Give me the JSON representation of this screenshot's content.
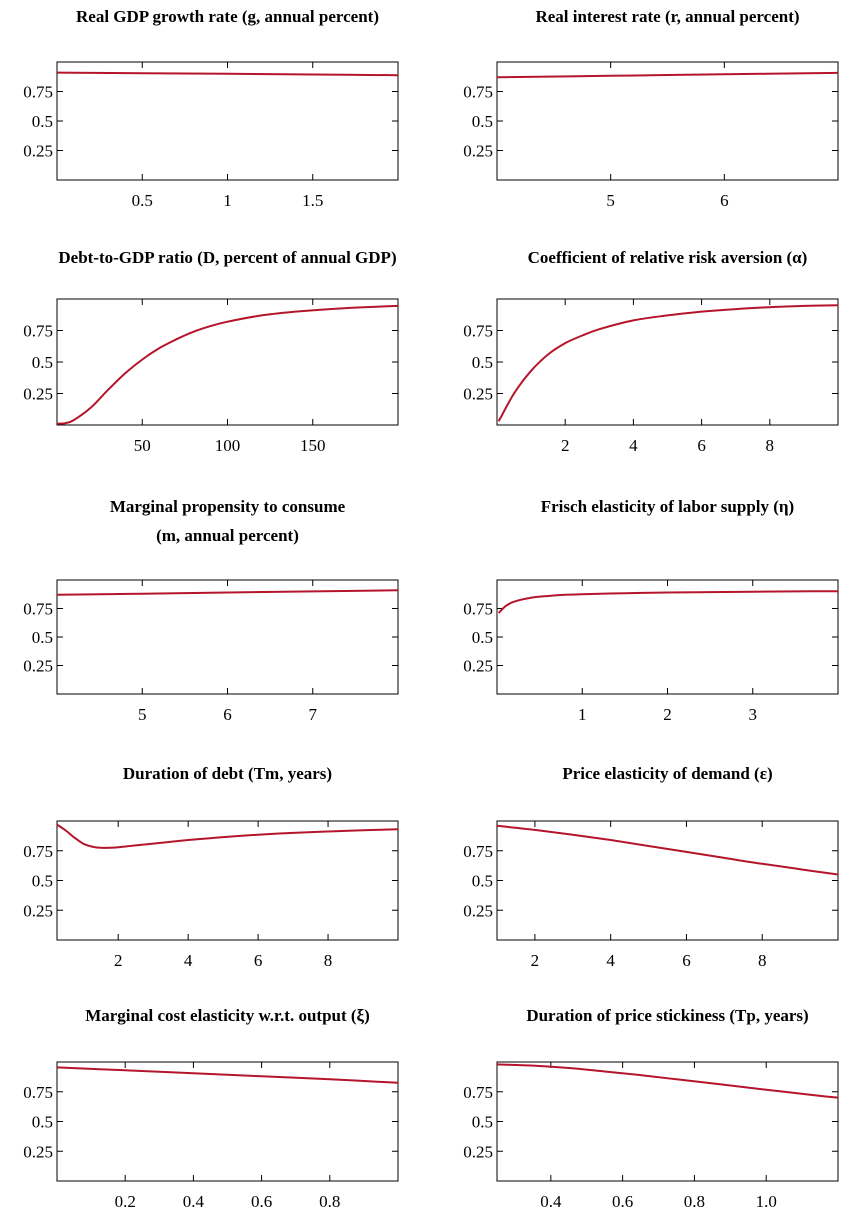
{
  "colors": {
    "line": "#b5152b"
  },
  "chart_data": [
    {
      "type": "line",
      "title": [
        "Real GDP growth rate (g, annual percent)"
      ],
      "xlim": [
        0,
        2
      ],
      "ylim": [
        0,
        1
      ],
      "xticks": [
        0.5,
        1,
        1.5
      ],
      "xtick_labels": [
        "0.5",
        "1",
        "1.5"
      ],
      "yticks": [
        0.25,
        0.5,
        0.75
      ],
      "ytick_labels": [
        "0.25",
        "0.5",
        "0.75"
      ],
      "series": [
        {
          "x": [
            0,
            0.5,
            1,
            1.5,
            2
          ],
          "y": [
            0.91,
            0.905,
            0.9,
            0.894,
            0.888
          ]
        }
      ]
    },
    {
      "type": "line",
      "title": [
        "Real interest rate (r, annual percent)"
      ],
      "xlim": [
        4,
        7
      ],
      "ylim": [
        0,
        1
      ],
      "xticks": [
        5,
        6
      ],
      "xtick_labels": [
        "5",
        "6"
      ],
      "yticks": [
        0.25,
        0.5,
        0.75
      ],
      "ytick_labels": [
        "0.25",
        "0.5",
        "0.75"
      ],
      "series": [
        {
          "x": [
            4,
            5,
            6,
            7
          ],
          "y": [
            0.87,
            0.883,
            0.896,
            0.908
          ]
        }
      ]
    },
    {
      "type": "line",
      "title": [
        "Debt-to-GDP ratio (D, percent of annual GDP)"
      ],
      "xlim": [
        0,
        200
      ],
      "ylim": [
        0,
        1
      ],
      "xticks": [
        50,
        100,
        150
      ],
      "xtick_labels": [
        "50",
        "100",
        "150"
      ],
      "yticks": [
        0.25,
        0.5,
        0.75
      ],
      "ytick_labels": [
        "0.25",
        "0.5",
        "0.75"
      ],
      "series": [
        {
          "x": [
            0,
            5,
            10,
            20,
            30,
            40,
            50,
            60,
            70,
            80,
            90,
            100,
            120,
            140,
            160,
            180,
            200
          ],
          "y": [
            0.01,
            0.015,
            0.04,
            0.14,
            0.28,
            0.41,
            0.52,
            0.61,
            0.68,
            0.74,
            0.785,
            0.82,
            0.87,
            0.9,
            0.92,
            0.935,
            0.945
          ]
        }
      ]
    },
    {
      "type": "line",
      "title": [
        "Coefficient of relative risk aversion (α)"
      ],
      "xlim": [
        0,
        10
      ],
      "ylim": [
        0,
        1
      ],
      "xticks": [
        2,
        4,
        6,
        8
      ],
      "xtick_labels": [
        "2",
        "4",
        "6",
        "8"
      ],
      "yticks": [
        0.25,
        0.5,
        0.75
      ],
      "ytick_labels": [
        "0.25",
        "0.5",
        "0.75"
      ],
      "series": [
        {
          "x": [
            0.05,
            0.5,
            1,
            1.5,
            2,
            2.5,
            3,
            4,
            5,
            6,
            7,
            8,
            9,
            10
          ],
          "y": [
            0.03,
            0.25,
            0.43,
            0.56,
            0.65,
            0.71,
            0.76,
            0.83,
            0.87,
            0.9,
            0.92,
            0.935,
            0.945,
            0.95
          ]
        }
      ]
    },
    {
      "type": "line",
      "title": [
        "Marginal propensity to consume",
        "(m, annual percent)"
      ],
      "xlim": [
        4,
        8
      ],
      "ylim": [
        0,
        1
      ],
      "xticks": [
        5,
        6,
        7
      ],
      "xtick_labels": [
        "5",
        "6",
        "7"
      ],
      "yticks": [
        0.25,
        0.5,
        0.75
      ],
      "ytick_labels": [
        "0.25",
        "0.5",
        "0.75"
      ],
      "series": [
        {
          "x": [
            4,
            5,
            6,
            7,
            8
          ],
          "y": [
            0.87,
            0.88,
            0.89,
            0.9,
            0.91
          ]
        }
      ]
    },
    {
      "type": "line",
      "title": [
        "Frisch elasticity of labor supply (η)"
      ],
      "xlim": [
        0,
        4
      ],
      "ylim": [
        0,
        1
      ],
      "xticks": [
        1,
        2,
        3
      ],
      "xtick_labels": [
        "1",
        "2",
        "3"
      ],
      "yticks": [
        0.25,
        0.5,
        0.75
      ],
      "ytick_labels": [
        "0.25",
        "0.5",
        "0.75"
      ],
      "series": [
        {
          "x": [
            0.02,
            0.1,
            0.2,
            0.4,
            0.6,
            0.8,
            1,
            1.5,
            2,
            2.5,
            3,
            3.5,
            4
          ],
          "y": [
            0.71,
            0.77,
            0.81,
            0.845,
            0.86,
            0.87,
            0.875,
            0.884,
            0.89,
            0.894,
            0.897,
            0.9,
            0.902
          ]
        }
      ]
    },
    {
      "type": "line",
      "title": [
        "Duration of debt (Tm, years)"
      ],
      "xlim": [
        0.25,
        10
      ],
      "ylim": [
        0,
        1
      ],
      "xticks": [
        2,
        4,
        6,
        8
      ],
      "xtick_labels": [
        "2",
        "4",
        "6",
        "8"
      ],
      "yticks": [
        0.25,
        0.5,
        0.75
      ],
      "ytick_labels": [
        "0.25",
        "0.5",
        "0.75"
      ],
      "series": [
        {
          "x": [
            0.25,
            0.5,
            0.75,
            1,
            1.25,
            1.5,
            1.75,
            2,
            2.5,
            3,
            4,
            5,
            6,
            7,
            8,
            9,
            10
          ],
          "y": [
            0.97,
            0.92,
            0.86,
            0.81,
            0.785,
            0.775,
            0.775,
            0.78,
            0.795,
            0.81,
            0.84,
            0.865,
            0.885,
            0.9,
            0.912,
            0.922,
            0.93
          ]
        }
      ]
    },
    {
      "type": "line",
      "title": [
        "Price elasticity of demand (ε)"
      ],
      "xlim": [
        1,
        10
      ],
      "ylim": [
        0,
        1
      ],
      "xticks": [
        2,
        4,
        6,
        8
      ],
      "xtick_labels": [
        "2",
        "4",
        "6",
        "8"
      ],
      "yticks": [
        0.25,
        0.5,
        0.75
      ],
      "ytick_labels": [
        "0.25",
        "0.5",
        "0.75"
      ],
      "series": [
        {
          "x": [
            1,
            2,
            3,
            4,
            5,
            6,
            7,
            8,
            9,
            10
          ],
          "y": [
            0.96,
            0.925,
            0.885,
            0.84,
            0.79,
            0.74,
            0.69,
            0.64,
            0.595,
            0.55
          ]
        }
      ]
    },
    {
      "type": "line",
      "title": [
        "Marginal cost elasticity w.r.t. output (ξ)"
      ],
      "xlim": [
        0,
        1
      ],
      "ylim": [
        0,
        1
      ],
      "xticks": [
        0.2,
        0.4,
        0.6,
        0.8
      ],
      "xtick_labels": [
        "0.2",
        "0.4",
        "0.6",
        "0.8"
      ],
      "yticks": [
        0.25,
        0.5,
        0.75
      ],
      "ytick_labels": [
        "0.25",
        "0.5",
        "0.75"
      ],
      "series": [
        {
          "x": [
            0,
            0.2,
            0.4,
            0.6,
            0.8,
            1
          ],
          "y": [
            0.955,
            0.93,
            0.905,
            0.88,
            0.855,
            0.825
          ]
        }
      ]
    },
    {
      "type": "line",
      "title": [
        "Duration of price stickiness (Tp, years)"
      ],
      "xlim": [
        0.25,
        1.2
      ],
      "ylim": [
        0,
        1
      ],
      "xticks": [
        0.4,
        0.6,
        0.8,
        1.0
      ],
      "xtick_labels": [
        "0.4",
        "0.6",
        "0.8",
        "1.0"
      ],
      "yticks": [
        0.25,
        0.5,
        0.75
      ],
      "ytick_labels": [
        "0.25",
        "0.5",
        "0.75"
      ],
      "series": [
        {
          "x": [
            0.25,
            0.35,
            0.45,
            0.55,
            0.65,
            0.75,
            0.85,
            0.95,
            1.05,
            1.15,
            1.2
          ],
          "y": [
            0.98,
            0.97,
            0.95,
            0.92,
            0.89,
            0.855,
            0.82,
            0.785,
            0.75,
            0.715,
            0.7
          ]
        }
      ]
    }
  ]
}
